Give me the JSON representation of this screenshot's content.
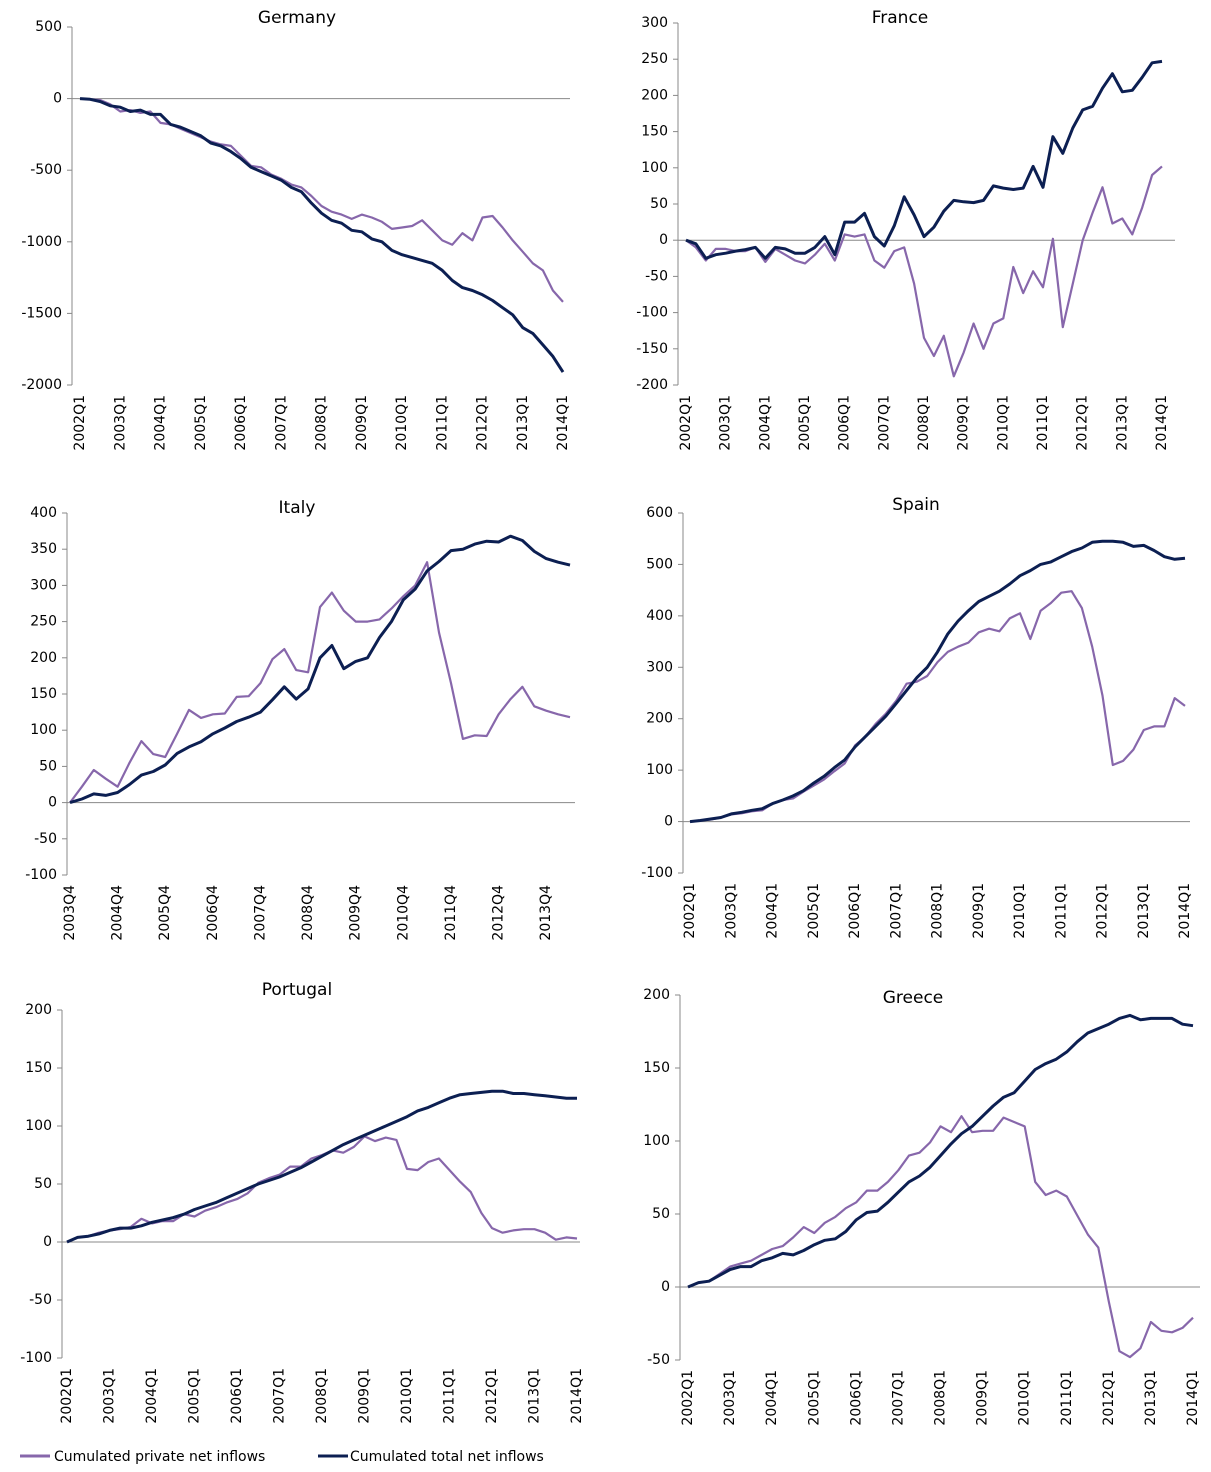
{
  "chart_data": [
    {
      "type": "line",
      "title": "Germany",
      "categories": [
        "2002Q1",
        null,
        null,
        null,
        "2003Q1",
        null,
        null,
        null,
        "2004Q1",
        null,
        null,
        null,
        "2005Q1",
        null,
        null,
        null,
        "2006Q1",
        null,
        null,
        null,
        "2007Q1",
        null,
        null,
        null,
        "2008Q1",
        null,
        null,
        null,
        "2009Q1",
        null,
        null,
        null,
        "2010Q1",
        null,
        null,
        null,
        "2011Q1",
        null,
        null,
        null,
        "2012Q1",
        null,
        null,
        null,
        "2013Q1",
        null,
        null,
        null,
        "2014Q1"
      ],
      "ylim": [
        -2000,
        500
      ],
      "yticks": [
        -2000,
        -1500,
        -1000,
        -500,
        0,
        500
      ],
      "series": [
        {
          "name": "Cumulated private net inflows",
          "color": "#8767ab",
          "values": [
            0,
            -5,
            -10,
            -40,
            -90,
            -80,
            -100,
            -90,
            -170,
            -180,
            -210,
            -240,
            -270,
            -300,
            -320,
            -330,
            -400,
            -470,
            -480,
            -530,
            -560,
            -600,
            -620,
            -680,
            -750,
            -790,
            -810,
            -840,
            -810,
            -830,
            -860,
            -910,
            -900,
            -890,
            -850,
            -920,
            -990,
            -1020,
            -940,
            -990,
            -830,
            -820,
            -900,
            -990,
            -1070,
            -1150,
            -1200,
            -1340,
            -1420
          ]
        },
        {
          "name": "Cumulated total net inflows",
          "color": "#0c1f52",
          "values": [
            0,
            -5,
            -20,
            -50,
            -60,
            -90,
            -80,
            -110,
            -110,
            -180,
            -200,
            -230,
            -260,
            -310,
            -330,
            -370,
            -420,
            -480,
            -510,
            -540,
            -570,
            -620,
            -650,
            -730,
            -800,
            -850,
            -870,
            -920,
            -930,
            -980,
            -1000,
            -1060,
            -1090,
            -1110,
            -1130,
            -1150,
            -1200,
            -1270,
            -1320,
            -1340,
            -1370,
            -1410,
            -1460,
            -1510,
            -1600,
            -1640,
            -1720,
            -1800,
            -1910
          ]
        }
      ]
    },
    {
      "type": "line",
      "title": "France",
      "categories": [
        "2002Q1",
        null,
        null,
        null,
        "2003Q1",
        null,
        null,
        null,
        "2004Q1",
        null,
        null,
        null,
        "2005Q1",
        null,
        null,
        null,
        "2006Q1",
        null,
        null,
        null,
        "2007Q1",
        null,
        null,
        null,
        "2008Q1",
        null,
        null,
        null,
        "2009Q1",
        null,
        null,
        null,
        "2010Q1",
        null,
        null,
        null,
        "2011Q1",
        null,
        null,
        null,
        "2012Q1",
        null,
        null,
        null,
        "2013Q1",
        null,
        null,
        null,
        "2014Q1"
      ],
      "ylim": [
        -200,
        300
      ],
      "yticks": [
        -200,
        -150,
        -100,
        -50,
        0,
        50,
        100,
        150,
        200,
        250,
        300
      ],
      "series": [
        {
          "color": "#8767ab",
          "values": [
            0,
            -10,
            -28,
            -12,
            -12,
            -15,
            -15,
            -10,
            -30,
            -12,
            -20,
            -28,
            -32,
            -20,
            -5,
            -28,
            8,
            5,
            8,
            -28,
            -38,
            -15,
            -10,
            -60,
            -135,
            -160,
            -132,
            -188,
            -155,
            -115,
            -150,
            -115,
            -108,
            -37,
            -73,
            -43,
            -65,
            2,
            -120,
            -60,
            0,
            38,
            73,
            23,
            30,
            8,
            45,
            90,
            102
          ]
        },
        {
          "color": "#0c1f52",
          "values": [
            0,
            -5,
            -25,
            -20,
            -18,
            -15,
            -13,
            -10,
            -25,
            -10,
            -12,
            -18,
            -18,
            -10,
            5,
            -20,
            25,
            25,
            37,
            5,
            -8,
            20,
            60,
            35,
            5,
            18,
            40,
            55,
            53,
            52,
            55,
            75,
            72,
            70,
            72,
            102,
            73,
            143,
            120,
            155,
            180,
            185,
            210,
            230,
            205,
            207,
            225,
            245,
            247
          ]
        }
      ]
    },
    {
      "type": "line",
      "title": "Italy",
      "categories": [
        "2003Q4",
        null,
        null,
        null,
        "2004Q4",
        null,
        null,
        null,
        "2005Q4",
        null,
        null,
        null,
        "2006Q4",
        null,
        null,
        null,
        "2007Q4",
        null,
        null,
        null,
        "2008Q4",
        null,
        null,
        null,
        "2009Q4",
        null,
        null,
        null,
        "2010Q4",
        null,
        null,
        null,
        "2011Q4",
        null,
        null,
        null,
        "2012Q4",
        null,
        null,
        null,
        "2013Q4",
        null,
        null
      ],
      "ylim": [
        -100,
        400
      ],
      "yticks": [
        -100,
        -50,
        0,
        50,
        100,
        150,
        200,
        250,
        300,
        350,
        400
      ],
      "series": [
        {
          "color": "#8767ab",
          "values": [
            0,
            22,
            45,
            33,
            22,
            55,
            85,
            67,
            63,
            95,
            128,
            117,
            122,
            123,
            146,
            147,
            165,
            198,
            212,
            183,
            180,
            270,
            290,
            265,
            250,
            250,
            253,
            268,
            285,
            300,
            332,
            235,
            165,
            88,
            93,
            92,
            122,
            143,
            160,
            133,
            127,
            122,
            118
          ]
        },
        {
          "color": "#0c1f52",
          "values": [
            0,
            5,
            12,
            10,
            14,
            25,
            38,
            43,
            52,
            68,
            77,
            84,
            95,
            103,
            112,
            118,
            125,
            142,
            160,
            143,
            157,
            200,
            217,
            185,
            195,
            200,
            228,
            250,
            280,
            295,
            320,
            333,
            348,
            350,
            357,
            361,
            360,
            368,
            362,
            347,
            337,
            332,
            328
          ]
        }
      ]
    },
    {
      "type": "line",
      "title": "Spain",
      "categories": [
        "2002Q1",
        null,
        null,
        null,
        "2003Q1",
        null,
        null,
        null,
        "2004Q1",
        null,
        null,
        null,
        "2005Q1",
        null,
        null,
        null,
        "2006Q1",
        null,
        null,
        null,
        "2007Q1",
        null,
        null,
        null,
        "2008Q1",
        null,
        null,
        null,
        "2009Q1",
        null,
        null,
        null,
        "2010Q1",
        null,
        null,
        null,
        "2011Q1",
        null,
        null,
        null,
        "2012Q1",
        null,
        null,
        null,
        "2013Q1",
        null,
        null,
        null,
        "2014Q1"
      ],
      "ylim": [
        -100,
        600
      ],
      "yticks": [
        -100,
        0,
        100,
        200,
        300,
        400,
        500,
        600
      ],
      "series": [
        {
          "color": "#8767ab",
          "values": [
            0,
            2,
            4,
            8,
            14,
            16,
            20,
            22,
            35,
            42,
            45,
            58,
            70,
            82,
            98,
            113,
            148,
            165,
            190,
            210,
            235,
            268,
            272,
            283,
            310,
            330,
            340,
            348,
            368,
            375,
            370,
            395,
            405,
            355,
            410,
            425,
            445,
            448,
            415,
            340,
            245,
            110,
            118,
            140,
            178,
            185,
            185,
            240,
            225
          ]
        },
        {
          "color": "#0c1f52",
          "values": [
            0,
            2,
            5,
            8,
            15,
            18,
            22,
            25,
            35,
            42,
            50,
            60,
            75,
            88,
            105,
            120,
            145,
            165,
            185,
            205,
            230,
            255,
            280,
            300,
            330,
            365,
            390,
            410,
            428,
            438,
            448,
            462,
            478,
            488,
            500,
            505,
            515,
            525,
            532,
            543,
            545,
            545,
            543,
            535,
            537,
            527,
            515,
            510,
            512
          ]
        }
      ]
    },
    {
      "type": "line",
      "title": "Portugal",
      "categories": [
        "2002Q1",
        null,
        null,
        null,
        "2003Q1",
        null,
        null,
        null,
        "2004Q1",
        null,
        null,
        null,
        "2005Q1",
        null,
        null,
        null,
        "2006Q1",
        null,
        null,
        null,
        "2007Q1",
        null,
        null,
        null,
        "2008Q1",
        null,
        null,
        null,
        "2009Q1",
        null,
        null,
        null,
        "2010Q1",
        null,
        null,
        null,
        "2011Q1",
        null,
        null,
        null,
        "2012Q1",
        null,
        null,
        null,
        "2013Q1",
        null,
        null,
        null,
        "2014Q1"
      ],
      "ylim": [
        -100,
        200
      ],
      "yticks": [
        -100,
        -50,
        0,
        50,
        100,
        150,
        200
      ],
      "series": [
        {
          "color": "#8767ab",
          "values": [
            0,
            4,
            5,
            8,
            10,
            11,
            13,
            20,
            16,
            18,
            18,
            24,
            22,
            27,
            30,
            34,
            37,
            42,
            51,
            55,
            58,
            65,
            65,
            72,
            75,
            79,
            77,
            82,
            91,
            87,
            90,
            88,
            63,
            62,
            69,
            72,
            62,
            52,
            43,
            25,
            12,
            8,
            10,
            11,
            11,
            8,
            2,
            4,
            3
          ]
        },
        {
          "color": "#0c1f52",
          "values": [
            0,
            4,
            5,
            7,
            10,
            12,
            12,
            14,
            17,
            19,
            21,
            24,
            28,
            31,
            34,
            38,
            42,
            46,
            50,
            53,
            56,
            60,
            64,
            69,
            74,
            79,
            84,
            88,
            92,
            96,
            100,
            104,
            108,
            113,
            116,
            120,
            124,
            127,
            128,
            129,
            130,
            130,
            128,
            128,
            127,
            126,
            125,
            124,
            124
          ]
        }
      ]
    },
    {
      "type": "line",
      "title": "Greece",
      "categories": [
        "2002Q1",
        null,
        null,
        null,
        "2003Q1",
        null,
        null,
        null,
        "2004Q1",
        null,
        null,
        null,
        "2005Q1",
        null,
        null,
        null,
        "2006Q1",
        null,
        null,
        null,
        "2007Q1",
        null,
        null,
        null,
        "2008Q1",
        null,
        null,
        null,
        "2009Q1",
        null,
        null,
        null,
        "2010Q1",
        null,
        null,
        null,
        "2011Q1",
        null,
        null,
        null,
        "2012Q1",
        null,
        null,
        null,
        "2013Q1",
        null,
        null,
        null,
        "2014Q1"
      ],
      "ylim": [
        -50,
        200
      ],
      "yticks": [
        -50,
        0,
        50,
        100,
        150,
        200
      ],
      "series": [
        {
          "color": "#8767ab",
          "values": [
            0,
            3,
            4,
            9,
            14,
            16,
            18,
            22,
            26,
            28,
            34,
            41,
            37,
            44,
            48,
            54,
            58,
            66,
            66,
            72,
            80,
            90,
            92,
            99,
            110,
            106,
            117,
            106,
            107,
            107,
            116,
            113,
            110,
            72,
            63,
            66,
            62,
            49,
            36,
            27,
            -10,
            -44,
            -48,
            -42,
            -24,
            -30,
            -31,
            -28,
            -21
          ]
        },
        {
          "color": "#0c1f52",
          "values": [
            0,
            3,
            4,
            8,
            12,
            14,
            14,
            18,
            20,
            23,
            22,
            25,
            29,
            32,
            33,
            38,
            46,
            51,
            52,
            58,
            65,
            72,
            76,
            82,
            90,
            98,
            105,
            110,
            117,
            124,
            130,
            133,
            141,
            149,
            153,
            156,
            161,
            168,
            174,
            177,
            180,
            184,
            186,
            183,
            184,
            184,
            184,
            180,
            179
          ]
        }
      ]
    }
  ]
}
